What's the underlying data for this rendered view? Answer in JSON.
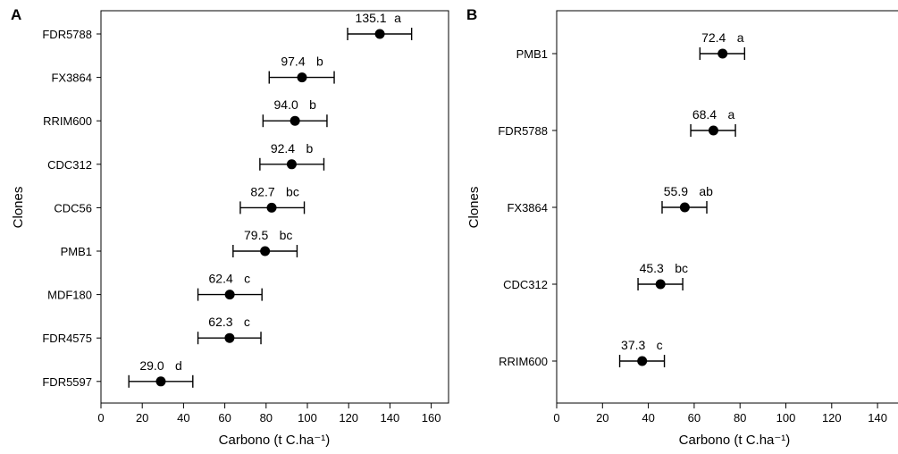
{
  "chart_data": [
    {
      "type": "scatter",
      "panel_label": "A",
      "xlabel": "Carbono (t C.ha⁻¹)",
      "ylabel": "Clones",
      "xlim": [
        0,
        170
      ],
      "xticks": [
        "0",
        "20",
        "40",
        "60",
        "80",
        "100",
        "120",
        "140",
        "160"
      ],
      "grid": false,
      "categories": [
        "FDR5788",
        "FX3864",
        "RRIM600",
        "CDC312",
        "CDC56",
        "PMB1",
        "MDF180",
        "FDR4575",
        "FDR5597"
      ],
      "values": [
        135.1,
        97.4,
        94.0,
        92.4,
        82.7,
        79.5,
        62.4,
        62.3,
        29.0
      ],
      "error_low": [
        119.5,
        81.5,
        78.5,
        77.0,
        67.5,
        64.0,
        47.0,
        47.0,
        13.5
      ],
      "error_high": [
        150.5,
        113.0,
        109.5,
        108.0,
        98.5,
        95.0,
        78.0,
        77.5,
        44.5
      ],
      "value_labels": [
        "135.1",
        "97.4",
        "94.0",
        "92.4",
        "82.7",
        "79.5",
        "62.4",
        "62.3",
        "29.0"
      ],
      "letters": [
        "a",
        "b",
        "b",
        "b",
        "bc",
        "bc",
        "c",
        "c",
        "d"
      ]
    },
    {
      "type": "scatter",
      "panel_label": "B",
      "xlabel": "Carbono (t C.ha⁻¹)",
      "ylabel": "Clones",
      "xlim": [
        0,
        150
      ],
      "xticks": [
        "0",
        "20",
        "40",
        "60",
        "80",
        "100",
        "120",
        "140"
      ],
      "grid": false,
      "categories": [
        "PMB1",
        "FDR5788",
        "FX3864",
        "CDC312",
        "RRIM600"
      ],
      "values": [
        72.4,
        68.4,
        55.9,
        45.3,
        37.3
      ],
      "error_low": [
        62.5,
        58.5,
        46.0,
        35.5,
        27.5
      ],
      "error_high": [
        82.0,
        78.0,
        65.5,
        55.0,
        47.0
      ],
      "value_labels": [
        "72.4",
        "68.4",
        "55.9",
        "45.3",
        "37.3"
      ],
      "letters": [
        "a",
        "a",
        "ab",
        "bc",
        "c"
      ]
    }
  ]
}
